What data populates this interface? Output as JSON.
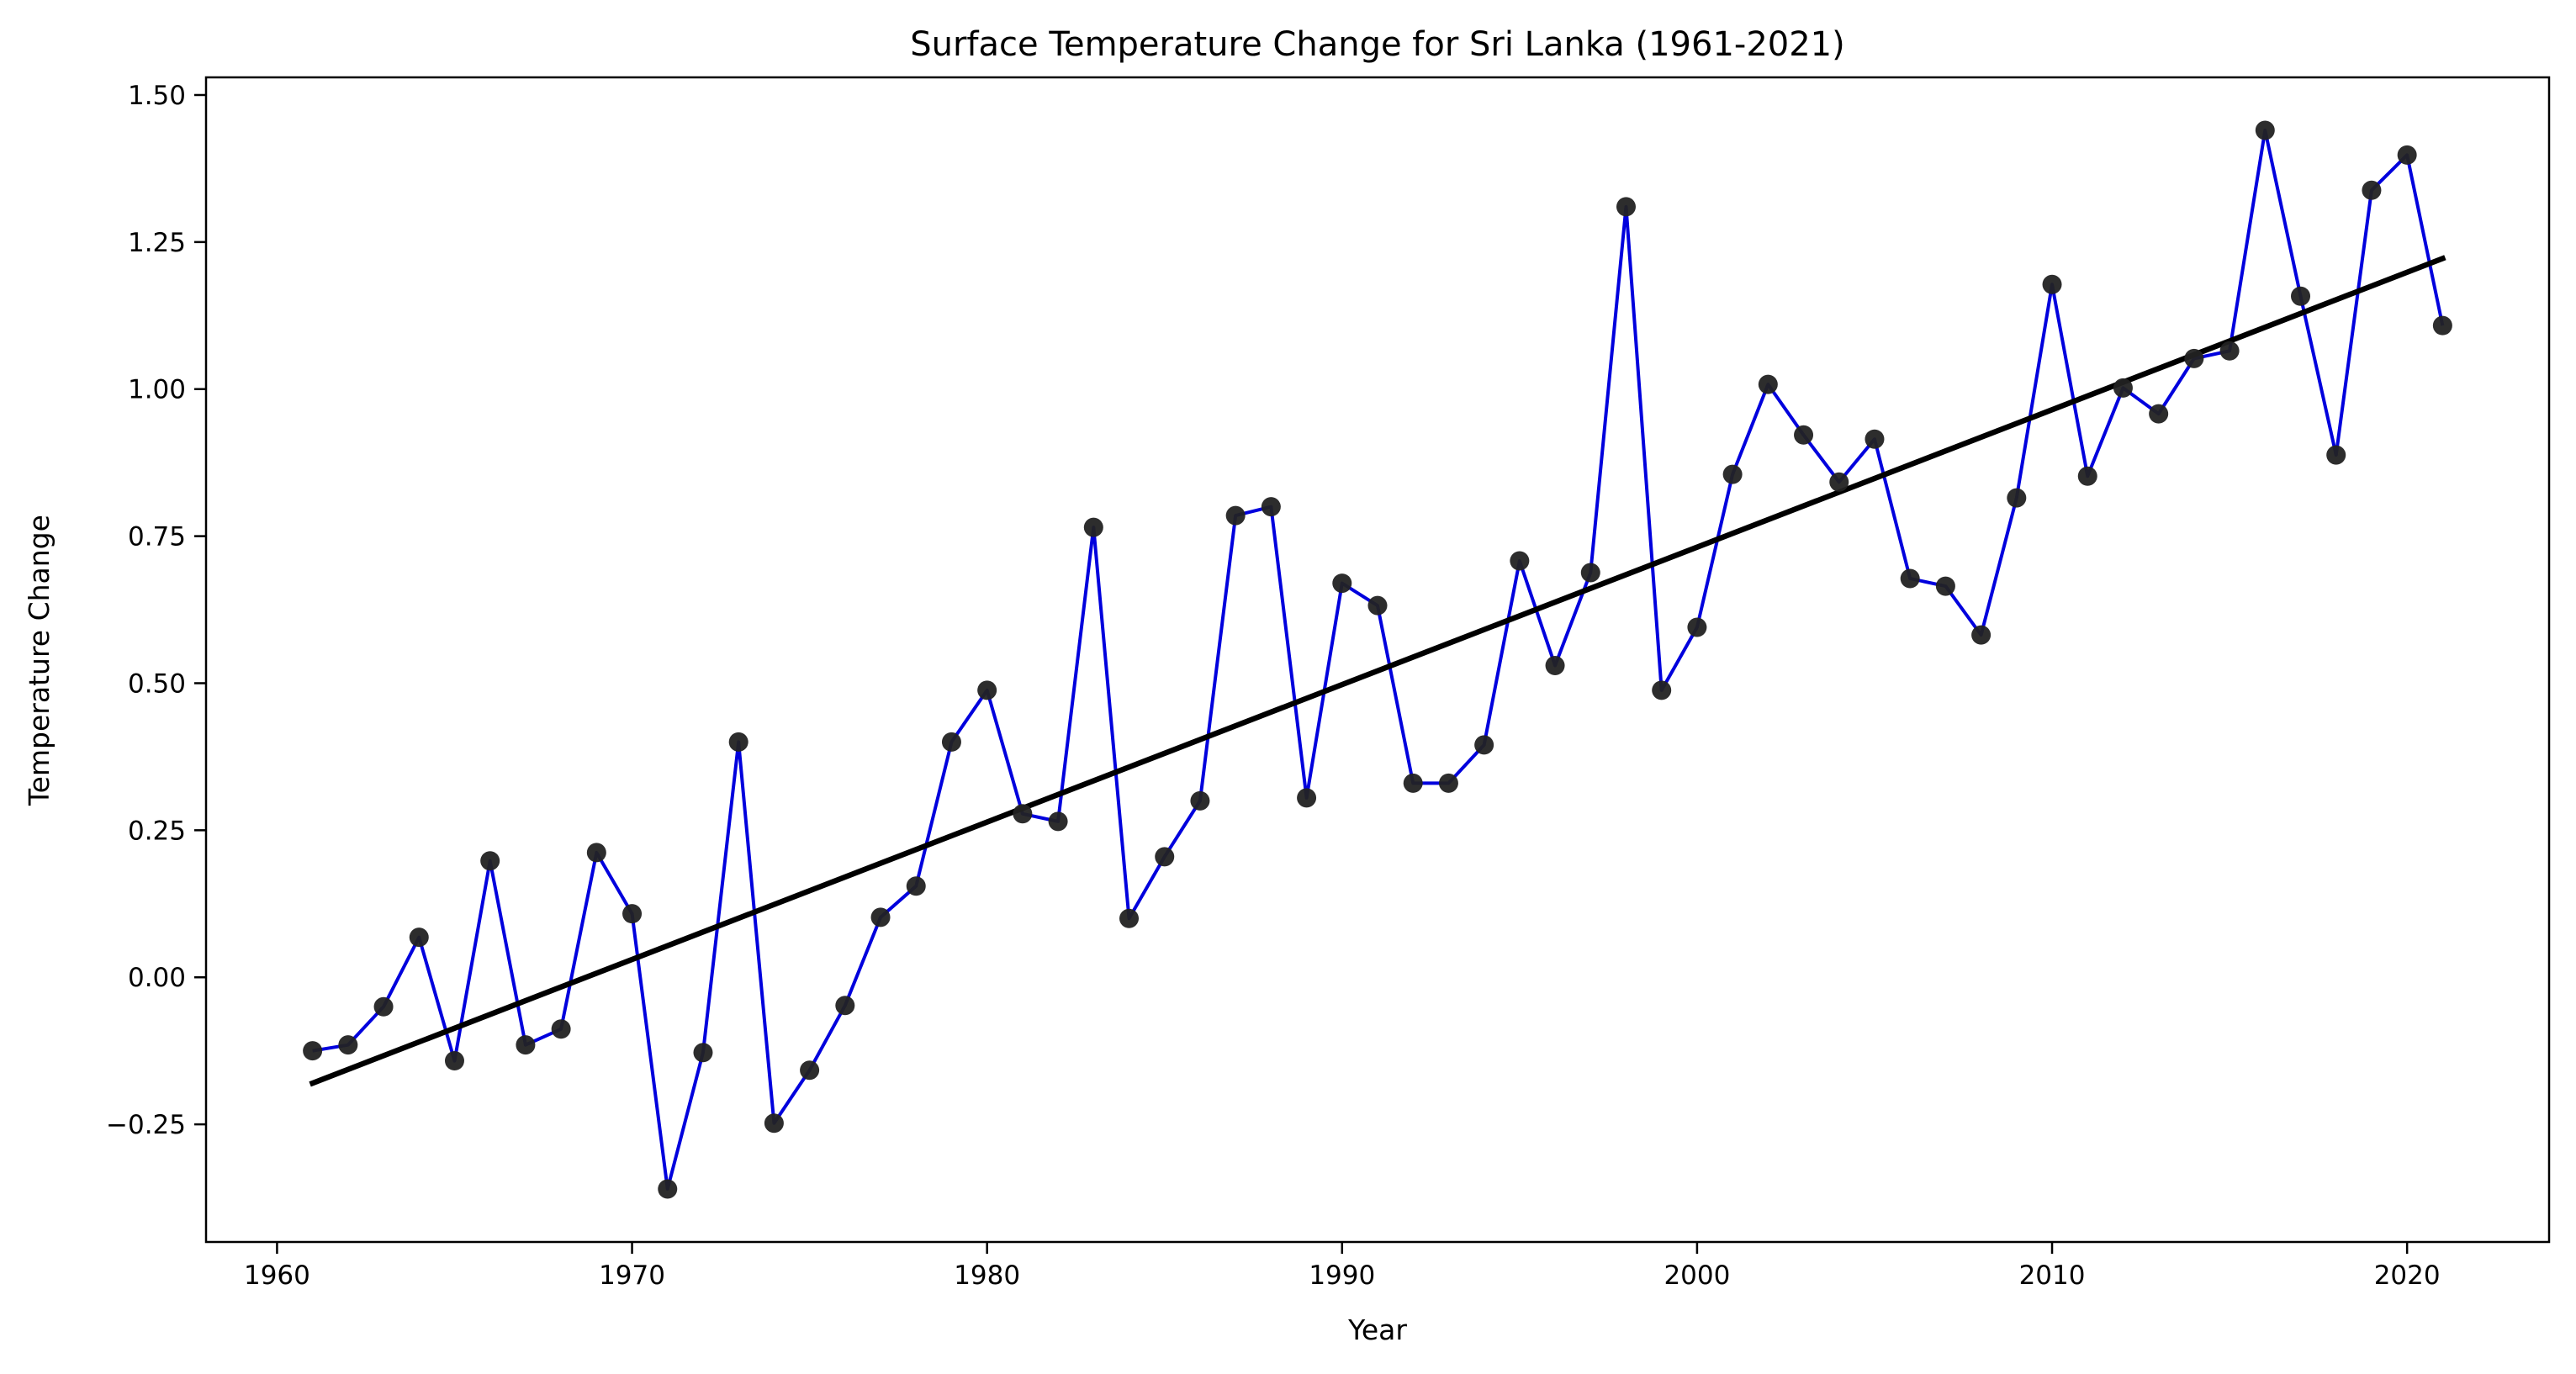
{
  "chart_data": {
    "type": "line",
    "title": "Surface Temperature Change for Sri Lanka (1961-2021)",
    "xlabel": "Year",
    "ylabel": "Temperature Change",
    "xlim": [
      1958,
      2024
    ],
    "ylim": [
      -0.45,
      1.53
    ],
    "xticks": [
      1960,
      1970,
      1980,
      1990,
      2000,
      2010,
      2020
    ],
    "yticks": [
      -0.25,
      0.0,
      0.25,
      0.5,
      0.75,
      1.0,
      1.25,
      1.5
    ],
    "xtick_labels": [
      "1960",
      "1970",
      "1980",
      "1990",
      "2000",
      "2010",
      "2020"
    ],
    "ytick_labels": [
      "−0.25",
      "0.00",
      "0.25",
      "0.50",
      "0.75",
      "1.00",
      "1.25",
      "1.50"
    ],
    "grid": false,
    "series": [
      {
        "color": "#0000dd",
        "marker_color": "#222222",
        "x": [
          1961,
          1962,
          1963,
          1964,
          1965,
          1966,
          1967,
          1968,
          1969,
          1970,
          1971,
          1972,
          1973,
          1974,
          1975,
          1976,
          1977,
          1978,
          1979,
          1980,
          1981,
          1982,
          1983,
          1984,
          1985,
          1986,
          1987,
          1988,
          1989,
          1990,
          1991,
          1992,
          1993,
          1994,
          1995,
          1996,
          1997,
          1998,
          1999,
          2000,
          2001,
          2002,
          2003,
          2004,
          2005,
          2006,
          2007,
          2008,
          2009,
          2010,
          2011,
          2012,
          2013,
          2014,
          2015,
          2016,
          2017,
          2018,
          2019,
          2020,
          2021
        ],
        "values": [
          -0.125,
          -0.115,
          -0.05,
          0.068,
          -0.142,
          0.198,
          -0.115,
          -0.088,
          0.212,
          0.108,
          -0.36,
          -0.128,
          0.4,
          -0.248,
          -0.158,
          -0.048,
          0.102,
          0.155,
          0.4,
          0.488,
          0.278,
          0.265,
          0.765,
          0.1,
          0.205,
          0.3,
          0.785,
          0.8,
          0.305,
          0.67,
          0.632,
          0.33,
          0.33,
          0.395,
          0.708,
          0.53,
          0.688,
          1.31,
          0.488,
          0.595,
          0.855,
          1.008,
          0.922,
          0.842,
          0.915,
          0.678,
          0.665,
          0.582,
          0.815,
          1.178,
          0.852,
          1.002,
          0.958,
          1.052,
          1.065,
          1.44,
          1.158,
          0.888,
          1.338,
          1.398,
          1.108
        ]
      }
    ],
    "trendline": {
      "color": "#000000",
      "x": [
        1961,
        2021
      ],
      "values": [
        -0.18,
        1.222
      ]
    }
  }
}
